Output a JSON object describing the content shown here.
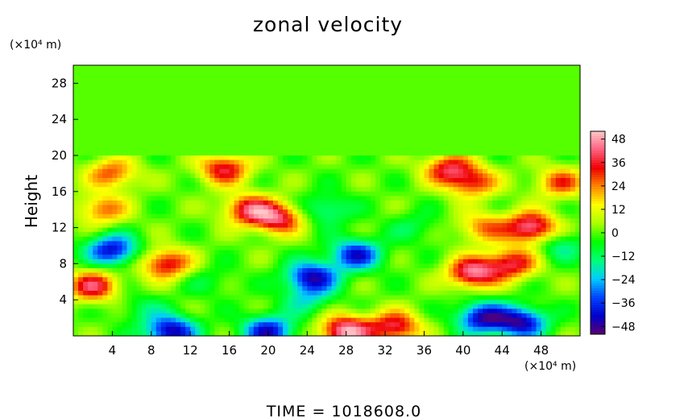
{
  "chart_data": {
    "type": "heatmap",
    "title": "zonal velocity",
    "xlabel": "",
    "ylabel": "Height",
    "x_unit": "(×10⁴ m)",
    "y_unit": "(×10⁴ m)",
    "xlim": [
      0,
      52
    ],
    "ylim": [
      0,
      30
    ],
    "x_ticks": [
      "4",
      "8",
      "12",
      "16",
      "20",
      "24",
      "28",
      "32",
      "36",
      "40",
      "44",
      "48"
    ],
    "x_tick_values": [
      4,
      8,
      12,
      16,
      20,
      24,
      28,
      32,
      36,
      40,
      44,
      48
    ],
    "y_ticks": [
      "4",
      "8",
      "12",
      "16",
      "20",
      "24",
      "28"
    ],
    "y_tick_values": [
      4,
      8,
      12,
      16,
      20,
      24,
      28
    ],
    "colorbar": {
      "range": [
        -52,
        52
      ],
      "ticks": [
        "48",
        "36",
        "24",
        "12",
        "0",
        "−12",
        "−24",
        "−36",
        "−48"
      ],
      "tick_values": [
        48,
        36,
        24,
        12,
        0,
        -12,
        -24,
        -36,
        -48
      ],
      "colormap": [
        "#5a0070",
        "#0000cc",
        "#0044ff",
        "#00ccff",
        "#00ff77",
        "#00ff00",
        "#aaff00",
        "#ffff00",
        "#ff8800",
        "#ee0000",
        "#ff6080",
        "#ffc8c8"
      ]
    },
    "background_value": 0,
    "upper_layer_min_height": 20,
    "features": [
      {
        "x": 4,
        "y": 9.5,
        "value": -42
      },
      {
        "x": 2,
        "y": 5.5,
        "value": 38
      },
      {
        "x": 3,
        "y": 14,
        "value": 26
      },
      {
        "x": 4,
        "y": 18,
        "value": 28
      },
      {
        "x": 9.5,
        "y": 8,
        "value": 36
      },
      {
        "x": 15.5,
        "y": 18.5,
        "value": 36
      },
      {
        "x": 18,
        "y": 14,
        "value": 36
      },
      {
        "x": 21,
        "y": 13,
        "value": 38
      },
      {
        "x": 24.5,
        "y": 6.5,
        "value": -44
      },
      {
        "x": 29,
        "y": 9,
        "value": -40
      },
      {
        "x": 26,
        "y": 14,
        "value": -18
      },
      {
        "x": 24,
        "y": 4,
        "value": -16
      },
      {
        "x": 28,
        "y": 0.5,
        "value": 50
      },
      {
        "x": 33,
        "y": 1,
        "value": 38
      },
      {
        "x": 10,
        "y": 0.5,
        "value": -46
      },
      {
        "x": 20,
        "y": 0.5,
        "value": -42
      },
      {
        "x": 41,
        "y": 7,
        "value": 44
      },
      {
        "x": 45,
        "y": 8,
        "value": 36
      },
      {
        "x": 42,
        "y": 12,
        "value": 24
      },
      {
        "x": 47,
        "y": 12,
        "value": 46
      },
      {
        "x": 38.5,
        "y": 18.5,
        "value": 34
      },
      {
        "x": 41,
        "y": 17,
        "value": 30
      },
      {
        "x": 42,
        "y": 2,
        "value": -44
      },
      {
        "x": 46,
        "y": 1.5,
        "value": -44
      },
      {
        "x": 50,
        "y": 17,
        "value": 28
      },
      {
        "x": 50,
        "y": 10,
        "value": -16
      },
      {
        "x": 14,
        "y": 6,
        "value": -8
      },
      {
        "x": 7,
        "y": 3,
        "value": -10
      },
      {
        "x": 35,
        "y": 12,
        "value": -10
      }
    ]
  },
  "footer": {
    "time_label": "TIME  =  1018608.0"
  }
}
